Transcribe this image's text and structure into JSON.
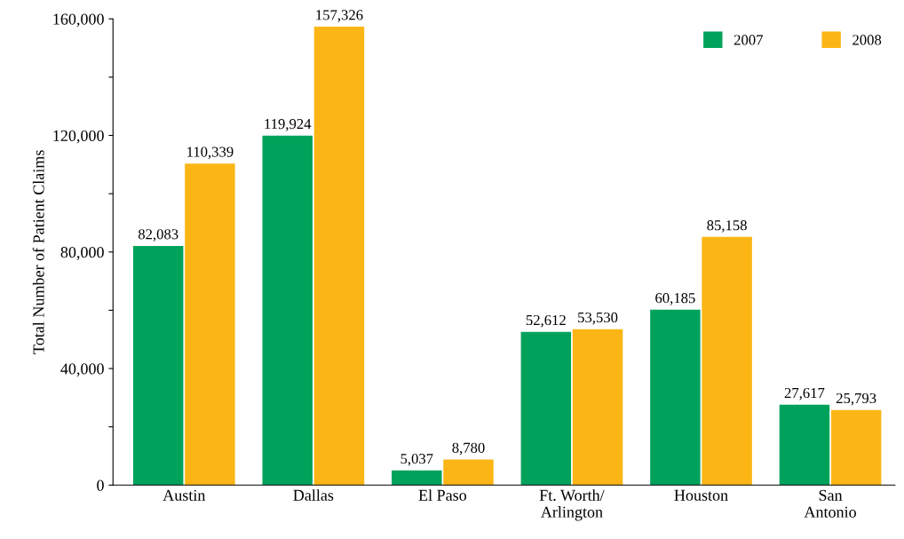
{
  "chart_data": {
    "type": "bar",
    "ylabel": "Total Number of Patient Claims",
    "categories": [
      "Austin",
      "Dallas",
      "El Paso",
      "Ft. Worth/\nArlington",
      "Houston",
      "San\nAntonio"
    ],
    "series": [
      {
        "name": "2007",
        "color": "#00a25b",
        "values": [
          82083,
          119924,
          5037,
          52612,
          60185,
          27617
        ],
        "value_labels": [
          "82,083",
          "119,924",
          "5,037",
          "52,612",
          "60,185",
          "27,617"
        ]
      },
      {
        "name": "2008",
        "color": "#fbb616",
        "values": [
          110339,
          157326,
          8780,
          53530,
          85158,
          25793
        ],
        "value_labels": [
          "110,339",
          "157,326",
          "8,780",
          "53,530",
          "85,158",
          "25,793"
        ]
      }
    ],
    "ylim": [
      0,
      160000
    ],
    "yticks": [
      {
        "value": 0,
        "label": "0"
      },
      {
        "value": 20000,
        "label": null
      },
      {
        "value": 40000,
        "label": "40,000"
      },
      {
        "value": 60000,
        "label": null
      },
      {
        "value": 80000,
        "label": "80,000"
      },
      {
        "value": 100000,
        "label": null
      },
      {
        "value": 120000,
        "label": "120,000"
      },
      {
        "value": 140000,
        "label": null
      },
      {
        "value": 160000,
        "label": "160,000"
      }
    ],
    "grid": false,
    "legend": "top right"
  }
}
